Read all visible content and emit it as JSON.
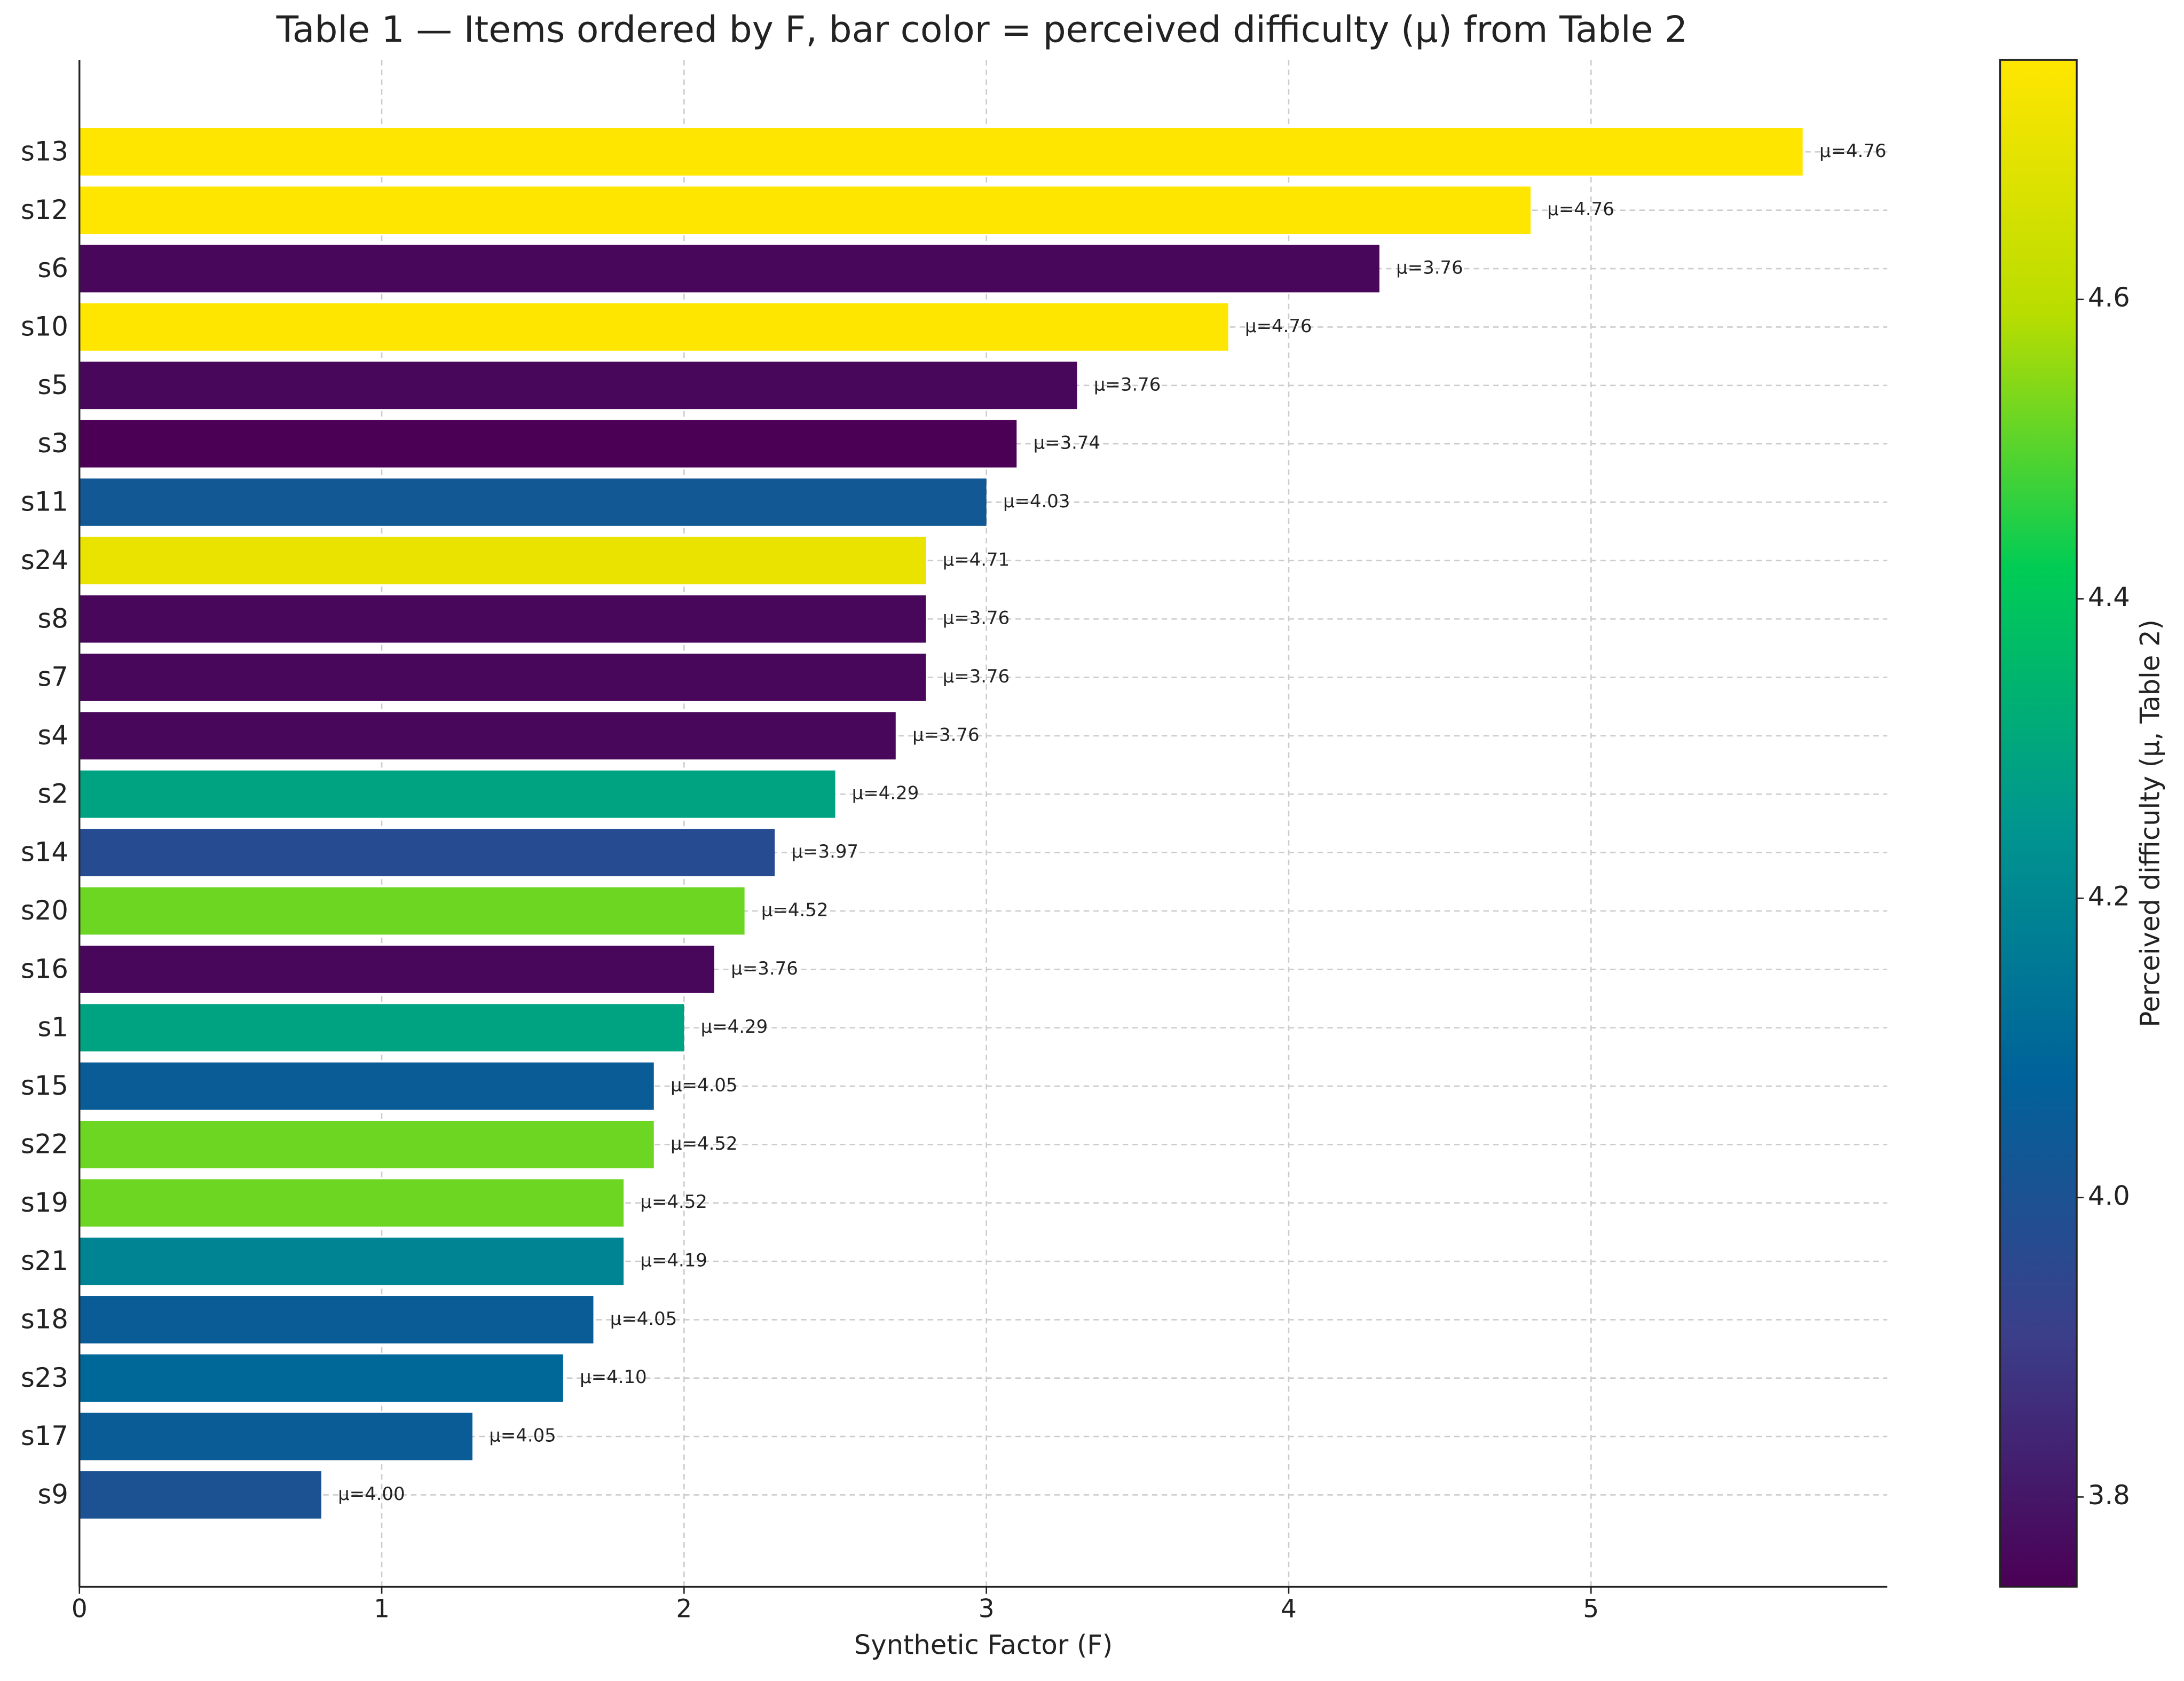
{
  "chart_data": {
    "type": "barh",
    "title": "Table 1 — Items ordered by F, bar color = perceived difficulty (μ) from Table 2",
    "x_label": "Synthetic Factor (F)",
    "categories": [
      "s13",
      "s12",
      "s6",
      "s10",
      "s5",
      "s3",
      "s11",
      "s24",
      "s8",
      "s7",
      "s4",
      "s2",
      "s14",
      "s20",
      "s16",
      "s1",
      "s15",
      "s22",
      "s19",
      "s21",
      "s18",
      "s23",
      "s17",
      "s9"
    ],
    "values": [
      5.7,
      4.8,
      4.3,
      3.8,
      3.3,
      3.1,
      3.0,
      2.8,
      2.8,
      2.8,
      2.7,
      2.5,
      2.3,
      2.2,
      2.1,
      2.0,
      1.9,
      1.9,
      1.8,
      1.8,
      1.7,
      1.6,
      1.3,
      0.8
    ],
    "color_values": [
      4.76,
      4.76,
      3.76,
      4.76,
      3.76,
      3.74,
      4.03,
      4.71,
      3.76,
      3.76,
      3.76,
      4.29,
      3.97,
      4.52,
      3.76,
      4.29,
      4.05,
      4.52,
      4.52,
      4.19,
      4.05,
      4.1,
      4.05,
      4.0
    ],
    "color_value_labels": [
      "μ=4.76",
      "μ=4.76",
      "μ=3.76",
      "μ=4.76",
      "μ=3.76",
      "μ=3.74",
      "μ=4.03",
      "μ=4.71",
      "μ=3.76",
      "μ=3.76",
      "μ=3.76",
      "μ=4.29",
      "μ=3.97",
      "μ=4.52",
      "μ=3.76",
      "μ=4.29",
      "μ=4.05",
      "μ=4.52",
      "μ=4.52",
      "μ=4.19",
      "μ=4.05",
      "μ=4.10",
      "μ=4.05",
      "μ=4.00"
    ],
    "xlim": [
      0,
      5.98
    ],
    "xticks": [
      0,
      1,
      2,
      3,
      4,
      5
    ],
    "grid": true,
    "colorbar_label": "Perceived difficulty (μ, Table 2)",
    "clim": [
      3.74,
      4.76
    ],
    "cticks": [
      3.8,
      {
        "value": 4.0,
        "label": "4.0"
      },
      4.2,
      4.4,
      4.6
    ],
    "colormap": [
      "#4b0055",
      "#3b3f8a",
      "#00629a",
      "#00968f",
      "#00cc55",
      "#b8dd00",
      "#ffe600"
    ]
  }
}
